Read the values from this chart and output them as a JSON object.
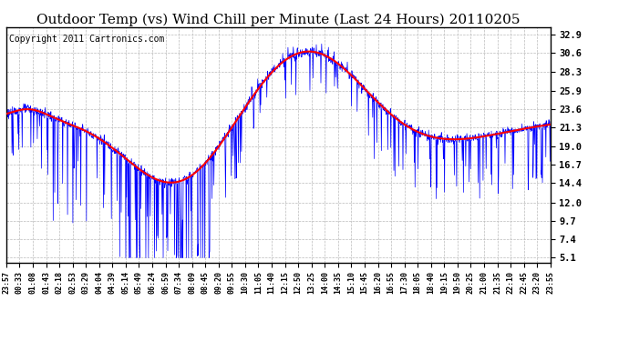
{
  "title": "Outdoor Temp (vs) Wind Chill per Minute (Last 24 Hours) 20110205",
  "copyright": "Copyright 2011 Cartronics.com",
  "yticks": [
    5.1,
    7.4,
    9.7,
    12.0,
    14.4,
    16.7,
    19.0,
    21.3,
    23.6,
    25.9,
    28.3,
    30.6,
    32.9
  ],
  "ylim": [
    4.5,
    33.8
  ],
  "xtick_labels": [
    "23:57",
    "00:33",
    "01:08",
    "01:43",
    "02:18",
    "02:53",
    "03:29",
    "04:04",
    "04:39",
    "05:14",
    "05:49",
    "06:24",
    "06:59",
    "07:34",
    "08:09",
    "08:45",
    "09:20",
    "09:55",
    "10:30",
    "11:05",
    "11:40",
    "12:15",
    "12:50",
    "13:25",
    "14:00",
    "14:35",
    "15:10",
    "15:45",
    "16:20",
    "16:55",
    "17:30",
    "18:05",
    "18:40",
    "19:15",
    "19:50",
    "20:25",
    "21:00",
    "21:35",
    "22:10",
    "22:45",
    "23:20",
    "23:55"
  ],
  "background_color": "#ffffff",
  "plot_bg_color": "#ffffff",
  "grid_color": "#bbbbbb",
  "blue_color": "#0000ff",
  "red_color": "#ff0000",
  "title_fontsize": 11,
  "copyright_fontsize": 7
}
